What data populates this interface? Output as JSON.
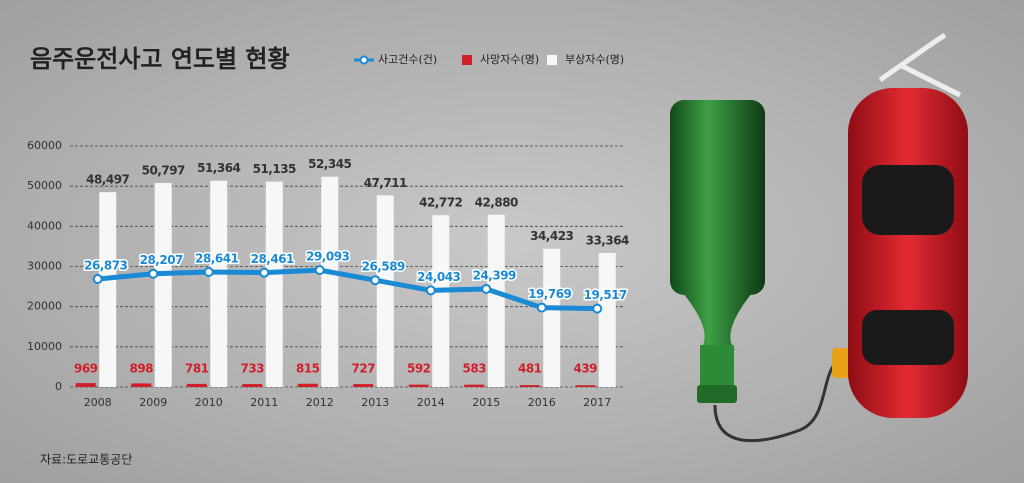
{
  "chart_data": {
    "type": "bar",
    "title": "음주운전사고 연도별 현황",
    "source": "자료:도로교통공단",
    "categories": [
      "2008",
      "2009",
      "2010",
      "2011",
      "2012",
      "2013",
      "2014",
      "2015",
      "2016",
      "2017"
    ],
    "series": [
      {
        "name": "사고건수(건)",
        "type": "line",
        "color": "#1a8ad4",
        "values": [
          26873,
          28207,
          28641,
          28461,
          29093,
          26589,
          24043,
          24399,
          19769,
          19517
        ],
        "value_labels": [
          "26,873",
          "28,207",
          "28,641",
          "28,461",
          "29,093",
          "26,589",
          "24,043",
          "24,399",
          "19,769",
          "19,517"
        ]
      },
      {
        "name": "사망자수(명)",
        "type": "bar",
        "color": "#d0202a",
        "values": [
          969,
          898,
          781,
          733,
          815,
          727,
          592,
          583,
          481,
          439
        ]
      },
      {
        "name": "부상자수(명)",
        "type": "bar",
        "color": "#f7f7f7",
        "values": [
          48497,
          50797,
          51364,
          51135,
          52345,
          47711,
          42772,
          42880,
          34423,
          33364
        ],
        "value_labels": [
          "48,497",
          "50,797",
          "51,364",
          "51,135",
          "52,345",
          "47,711",
          "42,772",
          "42,880",
          "34,423",
          "33,364"
        ]
      }
    ],
    "ylim": [
      0,
      60000
    ],
    "yticks": [
      0,
      10000,
      20000,
      30000,
      40000,
      50000,
      60000
    ],
    "grid": true
  }
}
